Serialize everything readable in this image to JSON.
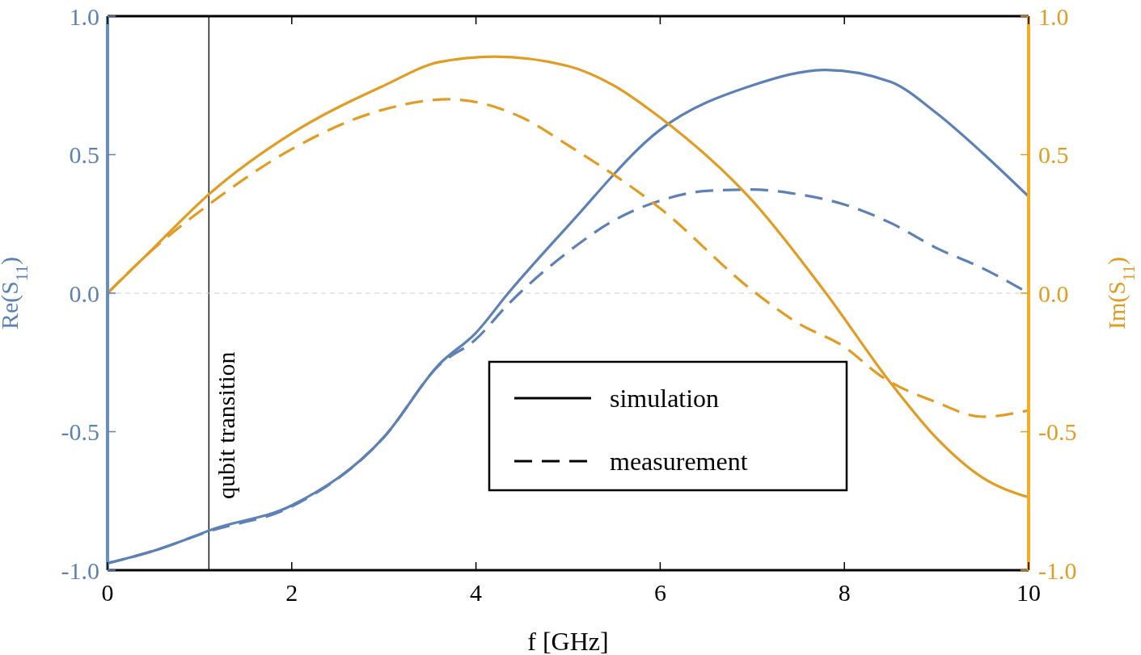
{
  "chart_data": {
    "type": "line",
    "xlabel": "f [GHz]",
    "ylabel": "Re(S$_{11}$)",
    "y2label": "Im(S$_{11}$)",
    "xlim": [
      0,
      10
    ],
    "xticks": [
      0,
      2,
      4,
      6,
      8,
      10
    ],
    "ylim": [
      -1,
      1
    ],
    "yticks": [
      {
        "value": -1,
        "label": "-1.0"
      },
      {
        "value": -0.5,
        "label": "-0.5"
      },
      {
        "value": 0,
        "label": "0.0"
      },
      {
        "value": 0.5,
        "label": "0.5"
      },
      {
        "value": 1,
        "label": "1.0"
      }
    ],
    "y2lim": [
      -1,
      1
    ],
    "y2ticks": [
      {
        "value": -1,
        "label": "-1.0"
      },
      {
        "value": -0.5,
        "label": "-0.5"
      },
      {
        "value": 0,
        "label": "0.0"
      },
      {
        "value": 0.5,
        "label": "0.5"
      },
      {
        "value": 1,
        "label": "1.0"
      }
    ],
    "annotations": [
      "simulation",
      "measurement"
    ],
    "grid": false,
    "ref_lines": [
      {
        "axis": "x",
        "value": 1.1,
        "label": "qubit transition",
        "color": "#000000",
        "line_style": "solid"
      },
      {
        "axis": "y",
        "value": 0,
        "label": null,
        "color": "#d0d0d0",
        "line_style": "dashed"
      }
    ],
    "series": [
      {
        "color": "#5e81b5",
        "line_style": "solid",
        "x": [
          0,
          0.5,
          1,
          1.1,
          2,
          3,
          3.6,
          4,
          4.35,
          5,
          6,
          7,
          7.8,
          8.5,
          9,
          9.5,
          10
        ],
        "values": [
          -0.975,
          -0.93,
          -0.87,
          -0.857,
          -0.766,
          -0.52,
          -0.257,
          -0.143,
          0,
          0.243,
          0.59,
          0.75,
          0.806,
          0.763,
          0.65,
          0.506,
          0.349
        ]
      },
      {
        "color": "#5e81b5",
        "line_style": "dashed",
        "x": [
          0,
          0.5,
          1.1,
          2,
          3,
          3.6,
          4,
          4.35,
          5,
          5.5,
          6,
          6.5,
          7,
          7.5,
          8,
          8.5,
          9,
          9.5,
          10
        ],
        "values": [
          -0.975,
          -0.93,
          -0.86,
          -0.77,
          -0.52,
          -0.26,
          -0.166,
          -0.04,
          0.149,
          0.263,
          0.334,
          0.369,
          0.374,
          0.357,
          0.32,
          0.254,
          0.163,
          0.09,
          0
        ]
      },
      {
        "color": "#e19c24",
        "line_style": "solid",
        "axis": "y2",
        "x": [
          0,
          0.5,
          1.1,
          2,
          3,
          3.6,
          4.2,
          5,
          5.5,
          6,
          7,
          7.8,
          8.5,
          9,
          9.5,
          10
        ],
        "values": [
          0,
          0.163,
          0.357,
          0.577,
          0.749,
          0.834,
          0.854,
          0.82,
          0.749,
          0.634,
          0.334,
          0,
          -0.323,
          -0.523,
          -0.666,
          -0.737
        ]
      },
      {
        "color": "#e19c24",
        "line_style": "dashed",
        "axis": "y2",
        "x": [
          0,
          0.5,
          1.1,
          2,
          3,
          3.7,
          4.5,
          5,
          6,
          7,
          7.5,
          8,
          8.4,
          9,
          9.5,
          10
        ],
        "values": [
          0,
          0.16,
          0.32,
          0.52,
          0.663,
          0.7,
          0.634,
          0.534,
          0.306,
          0.01,
          -0.109,
          -0.194,
          -0.3,
          -0.394,
          -0.446,
          -0.423
        ]
      }
    ]
  }
}
